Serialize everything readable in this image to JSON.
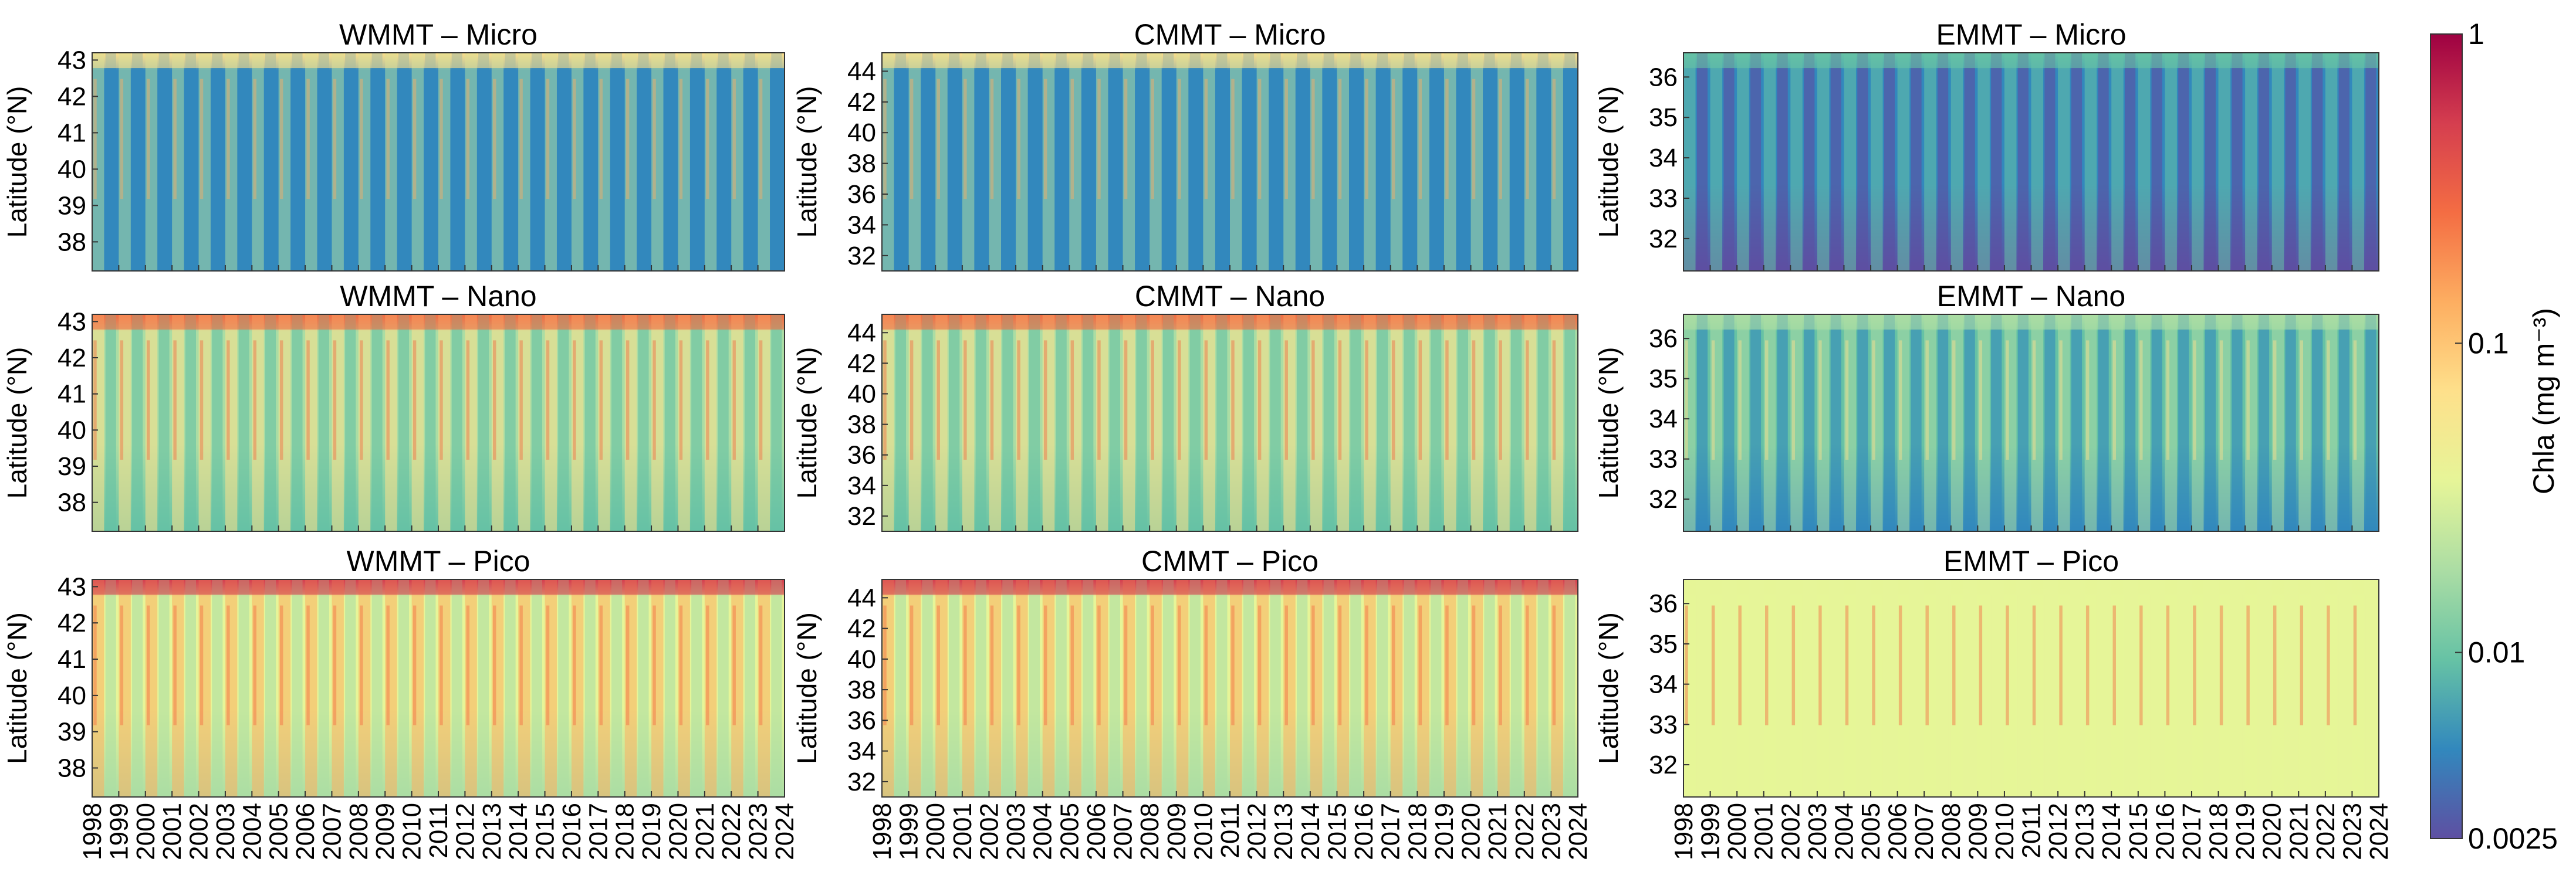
{
  "colors": {
    "colormap": [
      "#5e4fa2",
      "#3288bd",
      "#66c2a5",
      "#abdda4",
      "#e6f598",
      "#fee08b",
      "#fdae61",
      "#f46d43",
      "#d53e4f",
      "#9e0142"
    ],
    "frame": "#333333"
  },
  "chart_data": [
    {
      "type": "heatmap",
      "title": "WMMT – Micro",
      "ylabel": "Latitude (°N)",
      "xlim": [
        1998,
        2024
      ],
      "ylim": [
        37.2,
        43.2
      ],
      "yticks": [
        "38",
        "39",
        "40",
        "41",
        "42",
        "43"
      ],
      "xticks": [],
      "colorscale": "log",
      "intensity": "low"
    },
    {
      "type": "heatmap",
      "title": "CMMT – Micro",
      "ylabel": "Latitude (°N)",
      "xlim": [
        1998,
        2024
      ],
      "ylim": [
        31.0,
        45.2
      ],
      "yticks": [
        "32",
        "34",
        "36",
        "38",
        "40",
        "42",
        "44"
      ],
      "xticks": [],
      "colorscale": "log",
      "intensity": "low"
    },
    {
      "type": "heatmap",
      "title": "EMMT – Micro",
      "ylabel": "Latitude (°N)",
      "xlim": [
        1998,
        2024
      ],
      "ylim": [
        31.2,
        36.6
      ],
      "yticks": [
        "32",
        "33",
        "34",
        "35",
        "36"
      ],
      "xticks": [],
      "colorscale": "log",
      "intensity": "lowest"
    },
    {
      "type": "heatmap",
      "title": "WMMT – Nano",
      "ylabel": "Latitude (°N)",
      "xlim": [
        1998,
        2024
      ],
      "ylim": [
        37.2,
        43.2
      ],
      "yticks": [
        "38",
        "39",
        "40",
        "41",
        "42",
        "43"
      ],
      "xticks": [],
      "colorscale": "log",
      "intensity": "mid"
    },
    {
      "type": "heatmap",
      "title": "CMMT – Nano",
      "ylabel": "Latitude (°N)",
      "xlim": [
        1998,
        2024
      ],
      "ylim": [
        31.0,
        45.2
      ],
      "yticks": [
        "32",
        "34",
        "36",
        "38",
        "40",
        "42",
        "44"
      ],
      "xticks": [],
      "colorscale": "log",
      "intensity": "mid"
    },
    {
      "type": "heatmap",
      "title": "EMMT – Nano",
      "ylabel": "Latitude (°N)",
      "xlim": [
        1998,
        2024
      ],
      "ylim": [
        31.2,
        36.6
      ],
      "yticks": [
        "32",
        "33",
        "34",
        "35",
        "36"
      ],
      "xticks": [],
      "colorscale": "log",
      "intensity": "mid-low"
    },
    {
      "type": "heatmap",
      "title": "WMMT – Pico",
      "ylabel": "Latitude (°N)",
      "xlim": [
        1998,
        2024
      ],
      "ylim": [
        37.2,
        43.2
      ],
      "yticks": [
        "38",
        "39",
        "40",
        "41",
        "42",
        "43"
      ],
      "xticks": [
        "1998",
        "1999",
        "2000",
        "2001",
        "2002",
        "2003",
        "2004",
        "2005",
        "2006",
        "2007",
        "2008",
        "2009",
        "2010",
        "2011",
        "2012",
        "2013",
        "2014",
        "2015",
        "2016",
        "2017",
        "2018",
        "2019",
        "2020",
        "2021",
        "2022",
        "2023",
        "2024"
      ],
      "colorscale": "log",
      "intensity": "high"
    },
    {
      "type": "heatmap",
      "title": "CMMT – Pico",
      "ylabel": "Latitude (°N)",
      "xlim": [
        1998,
        2024
      ],
      "ylim": [
        31.0,
        45.2
      ],
      "yticks": [
        "32",
        "34",
        "36",
        "38",
        "40",
        "42",
        "44"
      ],
      "xticks": [
        "1998",
        "1999",
        "2000",
        "2001",
        "2002",
        "2003",
        "2004",
        "2005",
        "2006",
        "2007",
        "2008",
        "2009",
        "2010",
        "2011",
        "2012",
        "2013",
        "2014",
        "2015",
        "2016",
        "2017",
        "2018",
        "2019",
        "2020",
        "2021",
        "2022",
        "2023",
        "2024"
      ],
      "colorscale": "log",
      "intensity": "high"
    },
    {
      "type": "heatmap",
      "title": "EMMT – Pico",
      "ylabel": "Latitude (°N)",
      "xlim": [
        1998,
        2024
      ],
      "ylim": [
        31.2,
        36.6
      ],
      "yticks": [
        "32",
        "33",
        "34",
        "35",
        "36"
      ],
      "xticks": [
        "1998",
        "1999",
        "2000",
        "2001",
        "2002",
        "2003",
        "2004",
        "2005",
        "2006",
        "2007",
        "2008",
        "2009",
        "2010",
        "2011",
        "2012",
        "2013",
        "2014",
        "2015",
        "2016",
        "2017",
        "2018",
        "2019",
        "2020",
        "2021",
        "2022",
        "2023",
        "2024"
      ],
      "colorscale": "log",
      "intensity": "high-flat"
    }
  ],
  "colorbar": {
    "label": "Chla (mg m⁻³)",
    "scale": "log",
    "range": [
      0.0025,
      1
    ],
    "ticks": [
      {
        "value": 1,
        "label": "1"
      },
      {
        "value": 0.1,
        "label": "0.1"
      },
      {
        "value": 0.01,
        "label": "0.01"
      },
      {
        "value": 0.0025,
        "label": "0.0025"
      }
    ]
  }
}
